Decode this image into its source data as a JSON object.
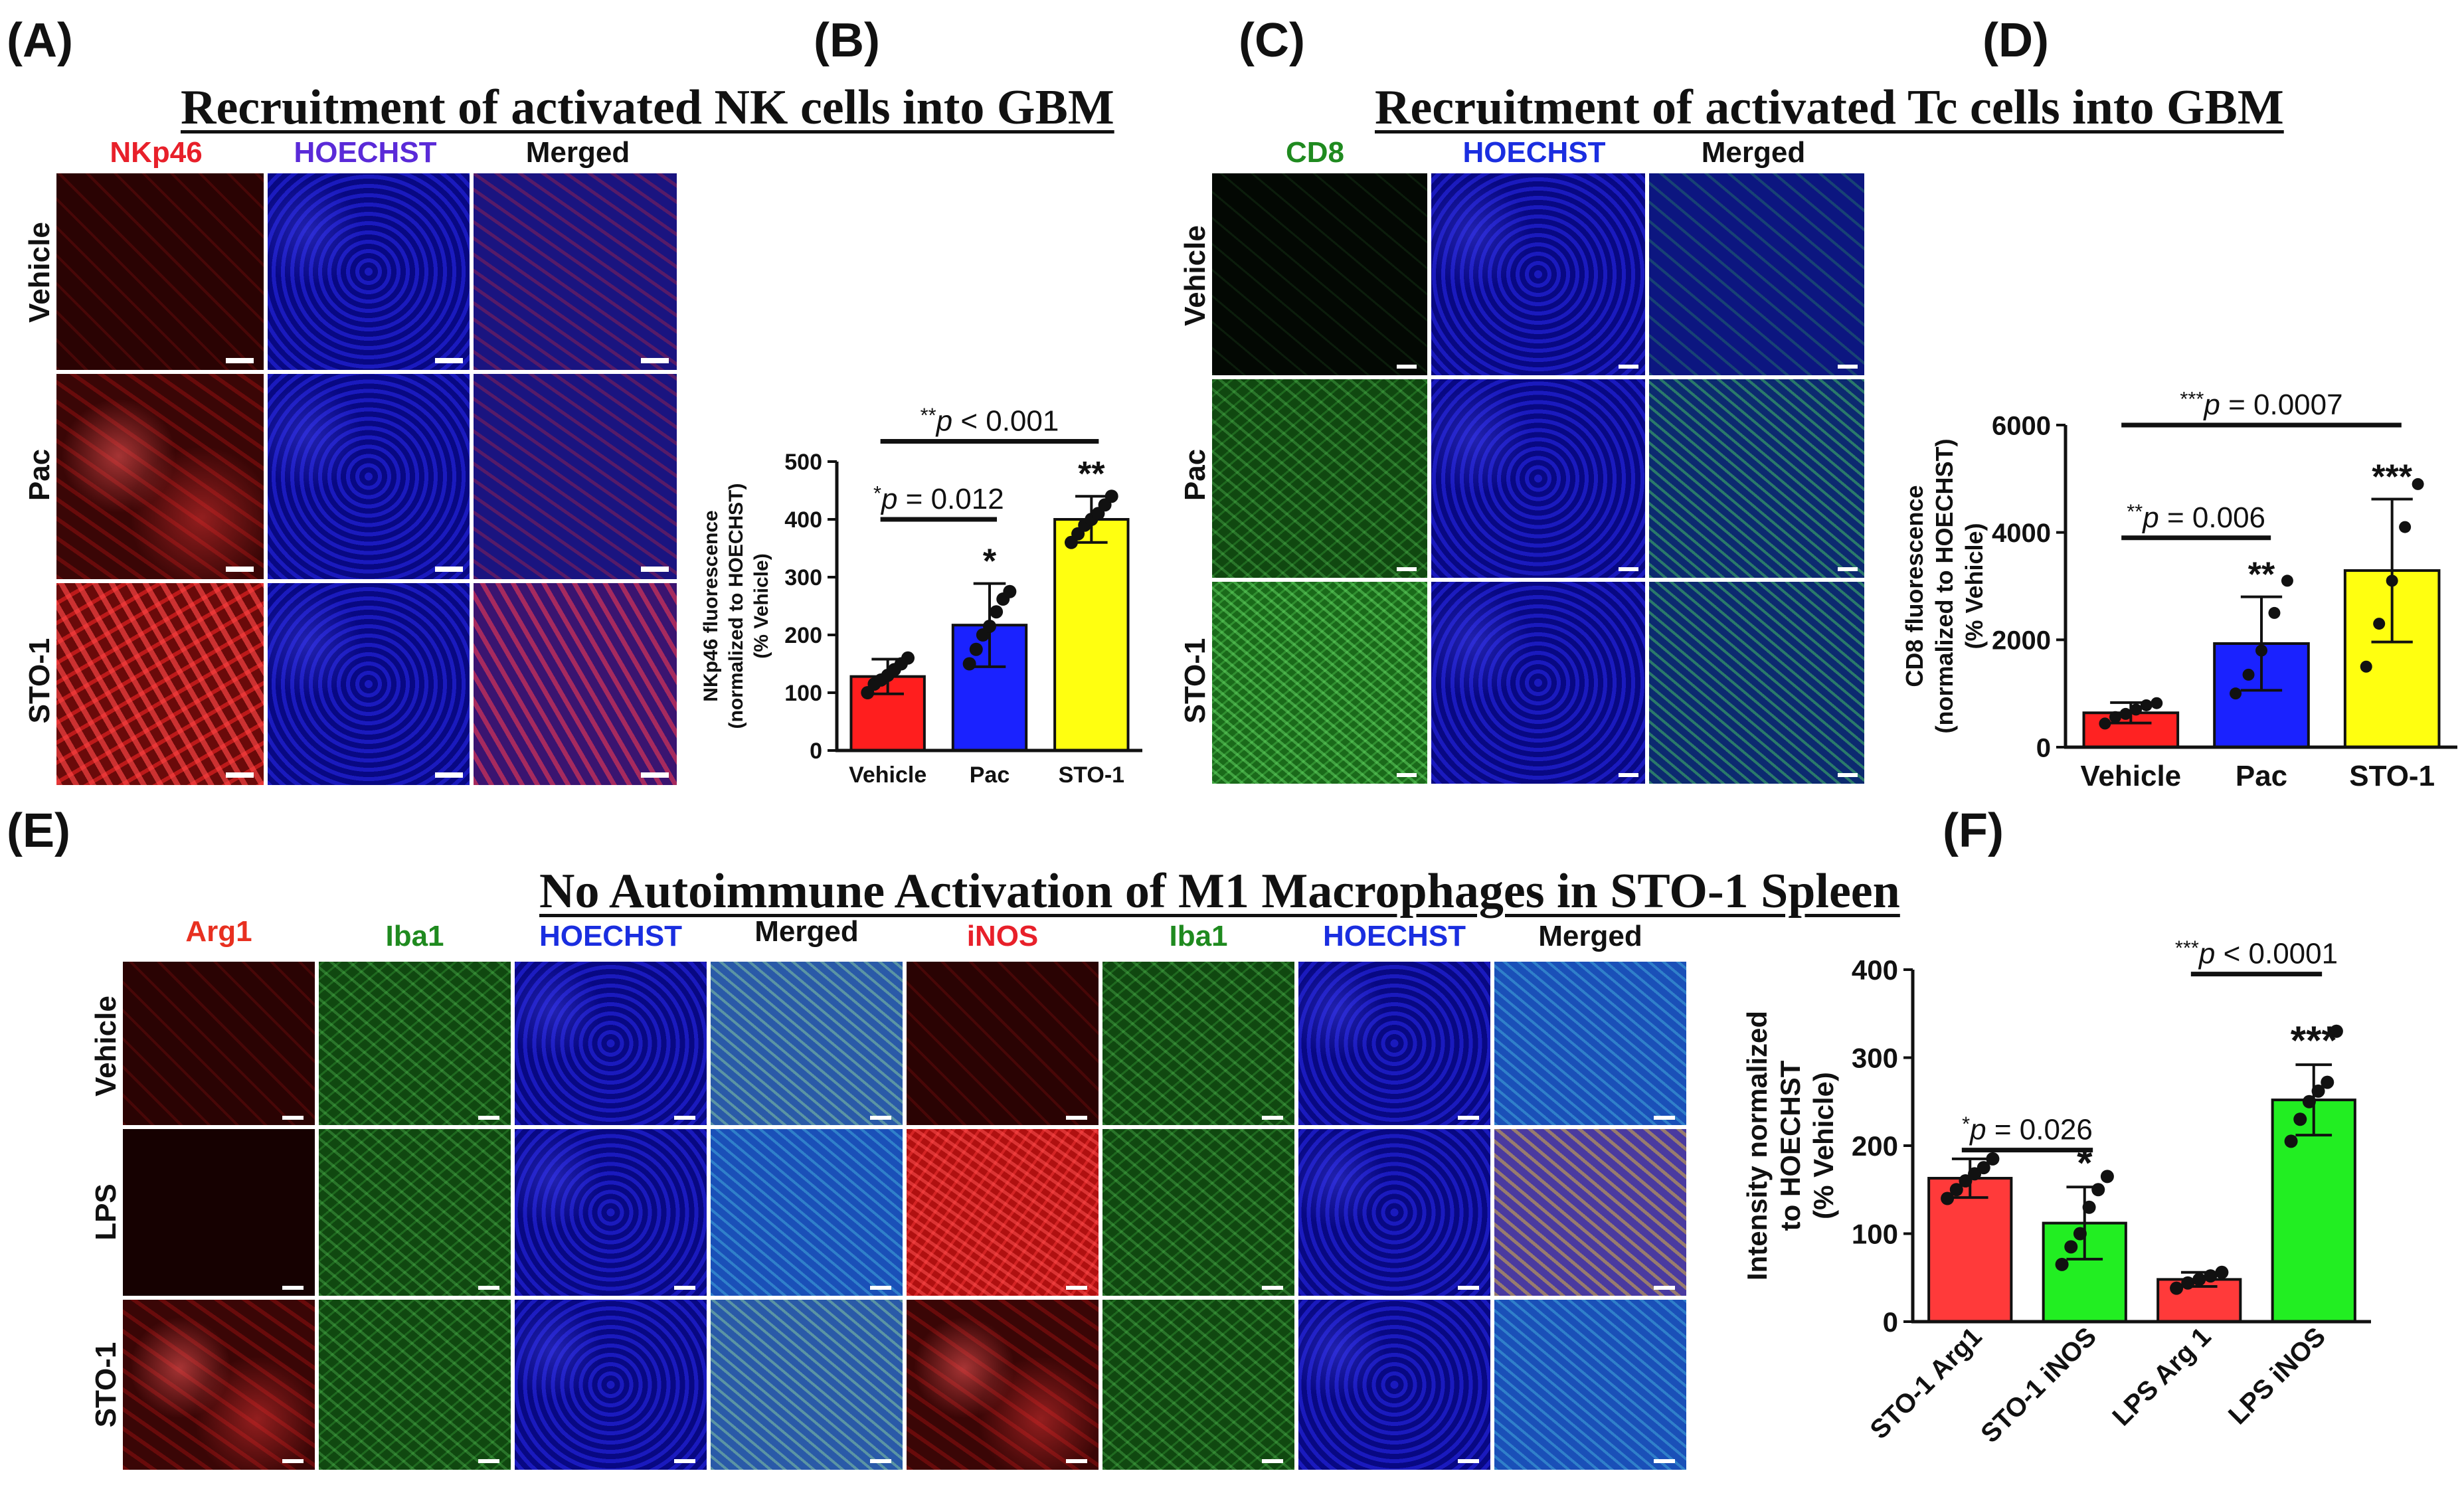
{
  "panel_labels": {
    "A": "(A)",
    "B": "(B)",
    "C": "(C)",
    "D": "(D)",
    "E": "(E)",
    "F": "(F)"
  },
  "titles": {
    "nk": "Recruitment of activated NK cells into GBM",
    "tc": "Recruitment of activated Tc cells into GBM",
    "m1": "No Autoimmune Activation of M1 Macrophages in STO-1 Spleen"
  },
  "panelA": {
    "channels": [
      {
        "label": "NKp46",
        "color": "#e8202a"
      },
      {
        "label": "HOECHST",
        "color": "#5a2ad8"
      },
      {
        "label": "Merged",
        "color": "#111111"
      }
    ],
    "rows": [
      "Vehicle",
      "Pac",
      "STO-1"
    ]
  },
  "panelC": {
    "channels": [
      {
        "label": "CD8",
        "color": "#1f8a1f"
      },
      {
        "label": "HOECHST",
        "color": "#1a2ee0"
      },
      {
        "label": "Merged",
        "color": "#111111"
      }
    ],
    "rows": [
      "Vehicle",
      "Pac",
      "STO-1"
    ]
  },
  "panelE": {
    "channels": [
      {
        "label": "Arg1",
        "color": "#e83020"
      },
      {
        "label": "Iba1",
        "color": "#1f8a1f"
      },
      {
        "label": "HOECHST",
        "color": "#1a2ee0"
      },
      {
        "label": "Merged",
        "color": "#111111"
      },
      {
        "label": "iNOS",
        "color": "#e8202a"
      },
      {
        "label": "Iba1",
        "color": "#1f8a1f"
      },
      {
        "label": "HOECHST",
        "color": "#1a2ee0"
      },
      {
        "label": "Merged",
        "color": "#111111"
      }
    ],
    "rows": [
      "Vehicle",
      "LPS",
      "STO-1"
    ]
  },
  "chart_data": [
    {
      "panel": "B",
      "type": "bar",
      "ylabel": "NKp46 fluorescence (normalized to HOECHST) (% Vehicle)",
      "ylabel_lines": [
        "NKp46 fluorescence",
        "(normalized to HOECHST)",
        "(% Vehicle)"
      ],
      "categories": [
        "Vehicle",
        "Pac",
        "STO-1"
      ],
      "values": [
        128,
        217,
        400
      ],
      "errors": [
        30,
        72,
        40
      ],
      "colors": [
        "#ff1e1e",
        "#1a22ff",
        "#ffff10"
      ],
      "points": [
        [
          100,
          115,
          122,
          130,
          140,
          150,
          160
        ],
        [
          150,
          175,
          200,
          215,
          240,
          262,
          275
        ],
        [
          360,
          375,
          390,
          400,
          410,
          425,
          440
        ]
      ],
      "ylim": [
        0,
        500
      ],
      "yticks": [
        0,
        100,
        200,
        300,
        400,
        500
      ],
      "bar_stars": [
        "",
        "*",
        "**"
      ],
      "brackets": [
        {
          "from": 0,
          "to": 1,
          "star": "*",
          "text": "p = 0.012",
          "y": 400
        },
        {
          "from": 0,
          "to": 2,
          "star": "**",
          "text": "p < 0.001",
          "y": 535
        }
      ]
    },
    {
      "panel": "D",
      "type": "bar",
      "ylabel": "CD8 fluorescence (normalized to HOECHST) (% Vehicle)",
      "ylabel_lines": [
        "CD8 fluorescence",
        "(normalized to HOECHST)",
        "(% Vehicle)"
      ],
      "categories": [
        "Vehicle",
        "Pac",
        "STO-1"
      ],
      "values": [
        640,
        1930,
        3290
      ],
      "errors": [
        190,
        870,
        1330
      ],
      "colors": [
        "#ff2222",
        "#1a22ff",
        "#ffff10"
      ],
      "points": [
        [
          440,
          560,
          620,
          700,
          780,
          820
        ],
        [
          1000,
          1350,
          1800,
          2500,
          3100
        ],
        [
          1500,
          2300,
          3100,
          4100,
          4900
        ]
      ],
      "ylim": [
        0,
        6000
      ],
      "yticks": [
        0,
        2000,
        4000,
        6000
      ],
      "bar_stars": [
        "",
        "**",
        "***"
      ],
      "brackets": [
        {
          "from": 0,
          "to": 1,
          "star": "**",
          "text": "p = 0.006",
          "y": 3900
        },
        {
          "from": 0,
          "to": 2,
          "star": "***",
          "text": "p = 0.0007",
          "y": 6000
        }
      ]
    },
    {
      "panel": "F",
      "type": "bar",
      "ylabel": "Intensity normalized to HOECHST (% Vehicle)",
      "ylabel_lines": [
        "Intensity  normalized",
        "to HOECHST",
        "(% Vehicle)"
      ],
      "categories": [
        "STO-1 Arg1",
        "STO-1 iNOS",
        "LPS Arg 1",
        "LPS iNOS"
      ],
      "values": [
        163,
        112,
        48,
        252
      ],
      "errors": [
        22,
        41,
        8,
        40
      ],
      "colors": [
        "#ff3a3a",
        "#22ee22",
        "#ff3a3a",
        "#22ee22"
      ],
      "points": [
        [
          140,
          150,
          160,
          168,
          175,
          185
        ],
        [
          65,
          85,
          100,
          130,
          150,
          165
        ],
        [
          38,
          44,
          48,
          52,
          56
        ],
        [
          205,
          230,
          250,
          262,
          272,
          330
        ]
      ],
      "ylim": [
        0,
        400
      ],
      "yticks": [
        0,
        100,
        200,
        300,
        400
      ],
      "bar_stars": [
        "",
        "*",
        "",
        "***"
      ],
      "brackets": [
        {
          "from": 0,
          "to": 1,
          "star": "*",
          "text": "p = 0.026",
          "y": 195
        },
        {
          "from": 2,
          "to": 3,
          "star": "***",
          "text": "p < 0.0001",
          "y": 395
        }
      ]
    }
  ]
}
